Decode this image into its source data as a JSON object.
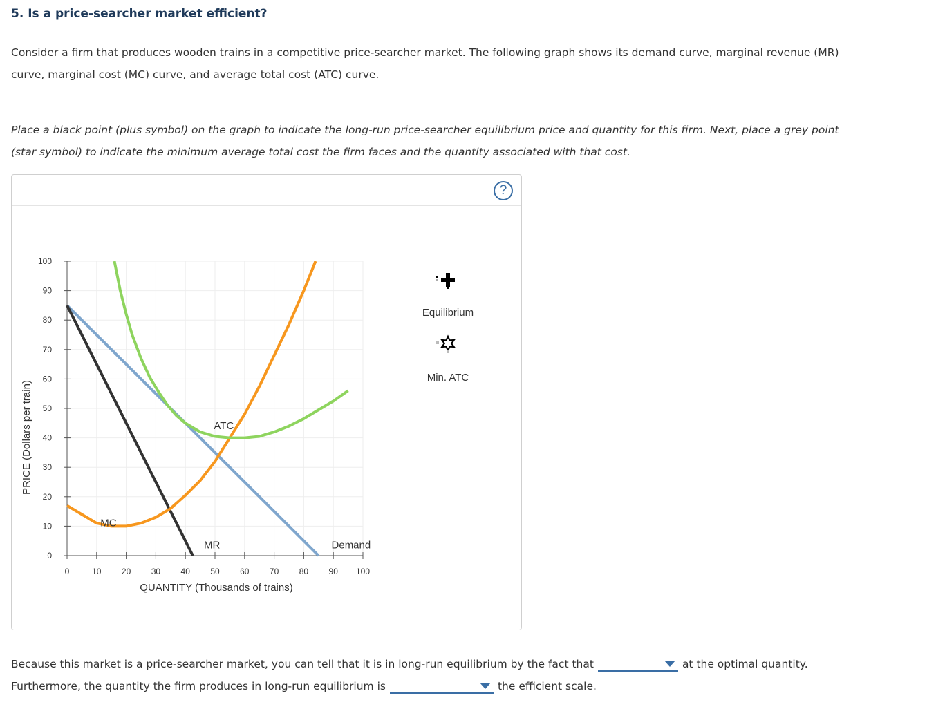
{
  "question": {
    "title": "5. Is a price-searcher market efficient?",
    "intro": "Consider a firm that produces wooden trains in a competitive price-searcher market. The following graph shows its demand curve, marginal revenue (MR) curve, marginal cost (MC) curve, and average total cost (ATC) curve.",
    "instructions": "Place a black point (plus symbol) on the graph to indicate the long-run price-searcher equilibrium price and quantity for this firm. Next, place a grey point (star symbol) to indicate the minimum average total cost the firm faces and the quantity associated with that cost."
  },
  "help_icon": "question-mark-icon",
  "chart_data": {
    "type": "line",
    "xlabel": "QUANTITY (Thousands of trains)",
    "ylabel": "PRICE (Dollars per train)",
    "xlim": [
      0,
      100
    ],
    "ylim": [
      0,
      100
    ],
    "xticks": [
      0,
      10,
      20,
      30,
      40,
      50,
      60,
      70,
      80,
      90,
      100
    ],
    "yticks": [
      0,
      10,
      20,
      30,
      40,
      50,
      60,
      70,
      80,
      90,
      100
    ],
    "grid": true,
    "series": [
      {
        "name": "Demand",
        "color": "#7fa6cd",
        "points": [
          [
            0,
            85
          ],
          [
            85,
            0
          ]
        ]
      },
      {
        "name": "MR",
        "color": "#333333",
        "points": [
          [
            0,
            85
          ],
          [
            42.5,
            0
          ]
        ]
      },
      {
        "name": "MC",
        "color": "#f7971e",
        "points": [
          [
            0,
            17
          ],
          [
            5,
            14
          ],
          [
            10,
            11
          ],
          [
            15,
            10
          ],
          [
            20,
            10
          ],
          [
            25,
            11
          ],
          [
            30,
            13
          ],
          [
            35,
            16
          ],
          [
            40,
            20.5
          ],
          [
            45,
            25.5
          ],
          [
            50,
            32
          ],
          [
            55,
            40
          ],
          [
            60,
            48
          ],
          [
            65,
            57.5
          ],
          [
            70,
            68
          ],
          [
            75,
            78.5
          ],
          [
            80,
            90
          ],
          [
            84,
            100
          ]
        ]
      },
      {
        "name": "ATC",
        "color": "#8ed45e",
        "points": [
          [
            16,
            100
          ],
          [
            18,
            90
          ],
          [
            20,
            82
          ],
          [
            22,
            75
          ],
          [
            25,
            67
          ],
          [
            28,
            60.5
          ],
          [
            31,
            55.5
          ],
          [
            34,
            51
          ],
          [
            37,
            47.5
          ],
          [
            40,
            45
          ],
          [
            45,
            42
          ],
          [
            50,
            40.5
          ],
          [
            55,
            40
          ],
          [
            60,
            40
          ],
          [
            65,
            40.5
          ],
          [
            70,
            42
          ],
          [
            75,
            44
          ],
          [
            80,
            46.5
          ],
          [
            85,
            49.5
          ],
          [
            90,
            52.5
          ],
          [
            95,
            56
          ]
        ]
      }
    ],
    "curve_labels": [
      {
        "text": "ATC",
        "x": 53,
        "y": 43
      },
      {
        "text": "MC",
        "x": 14,
        "y": 10
      },
      {
        "text": "MR",
        "x": 49,
        "y": 2.5
      },
      {
        "text": "Demand",
        "x": 96,
        "y": 2.5
      }
    ]
  },
  "palette": {
    "items": [
      {
        "label": "Equilibrium",
        "icon": "plus-point-icon",
        "color": "#000000"
      },
      {
        "label": "Min. ATC",
        "icon": "star-point-icon",
        "color": "#888888"
      }
    ]
  },
  "answers": {
    "line1_before": "Because this market is a price-searcher market, you can tell that it is in long-run equilibrium by the fact that",
    "line1_after": "at the optimal quantity.",
    "line2_before": "Furthermore, the quantity the firm produces in long-run equilibrium is",
    "line2_after": "the efficient scale."
  }
}
